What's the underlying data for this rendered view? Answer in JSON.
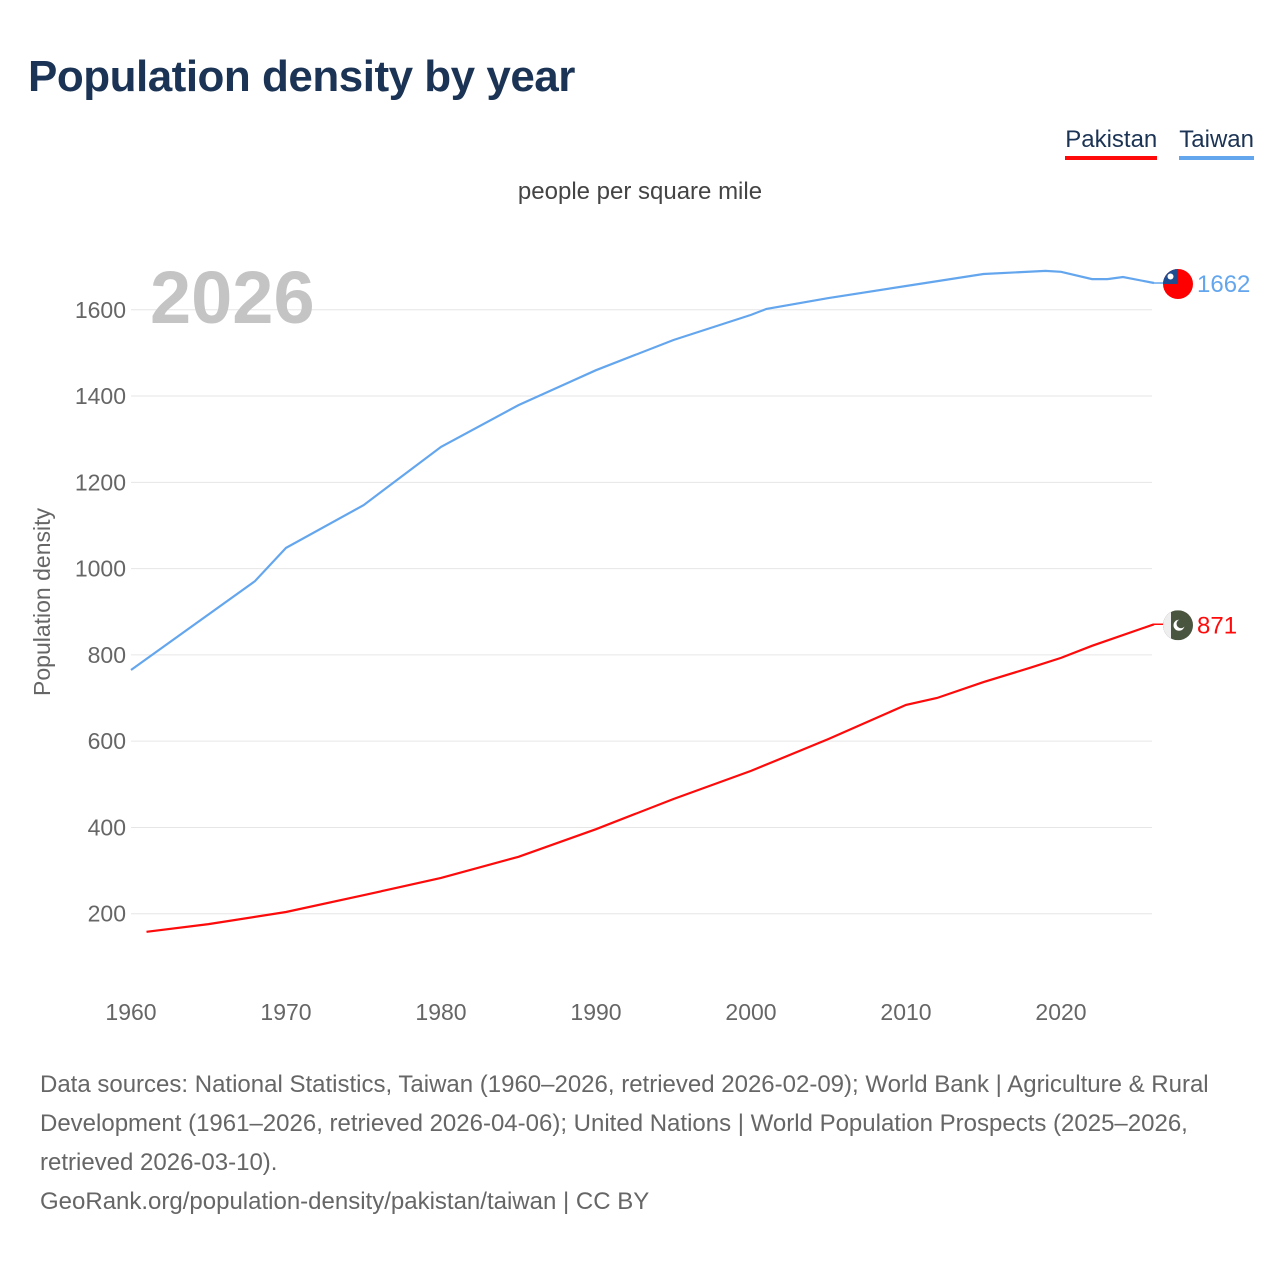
{
  "title": "Population density by year",
  "legend": [
    {
      "name": "Pakistan",
      "color": "#ff0a0a"
    },
    {
      "name": "Taiwan",
      "color": "#64a6ee"
    }
  ],
  "year_marker": "2026",
  "footer": {
    "sources": "Data sources: National Statistics, Taiwan (1960–2026, retrieved 2026-02-09); World Bank | Agriculture & Rural Development (1961–2026, retrieved 2026-04-06); United Nations | World Population Prospects (2025–2026, retrieved 2026-03-10).",
    "link": "GeoRank.org/population-density/pakistan/taiwan | CC BY"
  },
  "chart_data": {
    "type": "line",
    "subtitle": "people per square mile",
    "ylabel": "Population density",
    "xlabel": "",
    "xlim": [
      1960,
      2026
    ],
    "ylim": [
      0,
      1700
    ],
    "xticks": [
      1960,
      1970,
      1980,
      1990,
      2000,
      2010,
      2020
    ],
    "yticks": [
      200,
      400,
      600,
      800,
      1000,
      1200,
      1400,
      1600
    ],
    "grid": true,
    "series": [
      {
        "name": "Taiwan",
        "color": "#64a6ee",
        "end_label": "1662",
        "flag": "taiwan-flag",
        "x": [
          1960,
          1968,
          1970,
          1975,
          1980,
          1985,
          1990,
          1995,
          2000,
          2001,
          2005,
          2010,
          2015,
          2019,
          2020,
          2022,
          2023,
          2024,
          2026
        ],
        "y": [
          765,
          971,
          1048,
          1147,
          1282,
          1379,
          1460,
          1530,
          1588,
          1602,
          1627,
          1655,
          1683,
          1690,
          1688,
          1671,
          1671,
          1676,
          1662
        ]
      },
      {
        "name": "Pakistan",
        "color": "#ff0a0a",
        "end_label": "871",
        "flag": "pakistan-flag",
        "x": [
          1961,
          1965,
          1970,
          1975,
          1980,
          1985,
          1990,
          1995,
          2000,
          2005,
          2010,
          2012,
          2015,
          2018,
          2020,
          2022,
          2026
        ],
        "y": [
          158,
          176,
          204,
          243,
          283,
          332,
          396,
          466,
          531,
          605,
          684,
          700,
          737,
          770,
          793,
          821,
          871
        ]
      }
    ]
  }
}
